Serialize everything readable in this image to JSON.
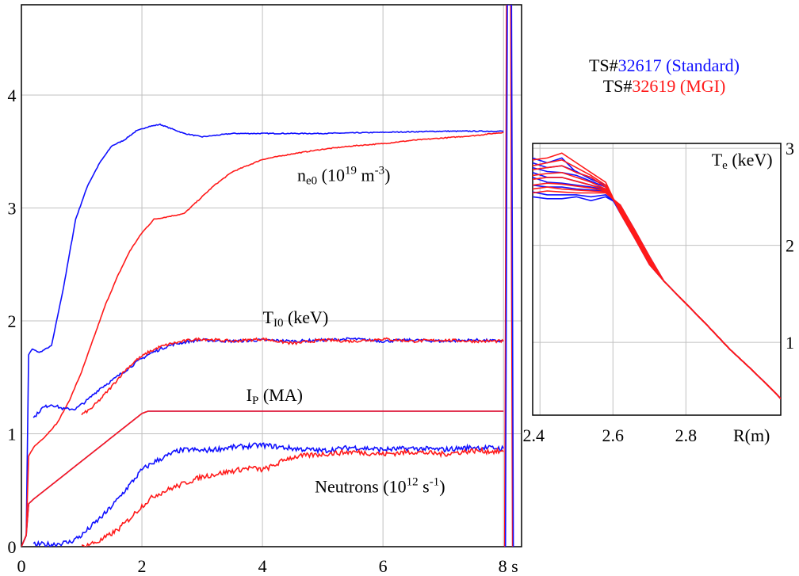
{
  "charts": [
    {
      "id": "main",
      "type": "line",
      "xlim": [
        0,
        8.3
      ],
      "ylim": [
        0,
        4.8
      ],
      "x_ticks": [
        "0",
        "2",
        "4",
        "6",
        "8 s"
      ],
      "x_tick_values": [
        0,
        2,
        4,
        6,
        8
      ],
      "y_ticks": [
        "0",
        "1",
        "2",
        "3",
        "4"
      ],
      "y_tick_values": [
        0,
        1,
        2,
        3,
        4
      ],
      "grid": true,
      "annotations": [
        {
          "id": "ne0",
          "parts": [
            "n",
            "e0",
            " (10",
            "19",
            " m",
            "-3",
            ")"
          ],
          "x": 5.35,
          "y": 3.24
        },
        {
          "id": "ti0",
          "parts": [
            "T",
            "I0",
            " (keV)"
          ],
          "x": 4.55,
          "y": 1.98
        },
        {
          "id": "ip",
          "parts": [
            "I",
            "P",
            " (MA)"
          ],
          "x": 4.2,
          "y": 1.29
        },
        {
          "id": "neutrons",
          "parts": [
            "Neutrons (10",
            "12",
            " s",
            "-1",
            ")"
          ],
          "x": 5.95,
          "y": 0.48
        }
      ],
      "series": [
        {
          "signal": "ne0",
          "shot": "32617",
          "color": "#1010ff",
          "x": [
            0,
            0.08,
            0.12,
            0.18,
            0.3,
            0.5,
            0.7,
            0.9,
            1.1,
            1.3,
            1.5,
            1.7,
            1.9,
            2.1,
            2.3,
            2.5,
            2.7,
            3.0,
            3.5,
            4.0,
            5.0,
            6.0,
            7.0,
            8.0
          ],
          "y": [
            0,
            0.1,
            1.7,
            1.75,
            1.72,
            1.78,
            2.3,
            2.9,
            3.2,
            3.4,
            3.55,
            3.6,
            3.68,
            3.72,
            3.74,
            3.7,
            3.66,
            3.63,
            3.66,
            3.66,
            3.66,
            3.67,
            3.68,
            3.68
          ]
        },
        {
          "signal": "ne0",
          "shot": "32619",
          "color": "#ff1a1a",
          "x": [
            0,
            0.08,
            0.12,
            0.2,
            0.4,
            0.6,
            0.8,
            1.0,
            1.2,
            1.4,
            1.6,
            1.8,
            2.0,
            2.2,
            2.5,
            2.7,
            2.9,
            3.2,
            3.5,
            4.0,
            4.5,
            5.0,
            5.5,
            6.0,
            6.5,
            7.0,
            7.5,
            8.0
          ],
          "y": [
            0,
            0.1,
            0.8,
            0.88,
            0.98,
            1.1,
            1.3,
            1.55,
            1.85,
            2.15,
            2.4,
            2.62,
            2.78,
            2.9,
            2.93,
            2.95,
            3.05,
            3.2,
            3.32,
            3.43,
            3.48,
            3.52,
            3.55,
            3.57,
            3.6,
            3.62,
            3.64,
            3.67
          ]
        },
        {
          "signal": "ti0",
          "shot": "32617",
          "color": "#1010ff",
          "x": [
            0.2,
            0.35,
            0.5,
            0.7,
            0.9,
            1.1,
            1.3,
            1.5,
            1.7,
            1.9,
            2.1,
            2.3,
            2.5,
            2.8,
            3.0,
            3.5,
            4.0,
            4.5,
            5.0,
            5.5,
            6.0,
            6.5,
            7.0,
            7.5,
            8.0
          ],
          "y": [
            1.14,
            1.23,
            1.26,
            1.22,
            1.22,
            1.3,
            1.4,
            1.47,
            1.55,
            1.63,
            1.7,
            1.75,
            1.79,
            1.82,
            1.83,
            1.82,
            1.83,
            1.82,
            1.83,
            1.84,
            1.82,
            1.83,
            1.82,
            1.83,
            1.82
          ]
        },
        {
          "signal": "ti0",
          "shot": "32619",
          "color": "#ff1a1a",
          "x": [
            1.0,
            1.15,
            1.3,
            1.5,
            1.7,
            1.9,
            2.1,
            2.3,
            2.5,
            2.8,
            3.0,
            3.5,
            4.0,
            4.5,
            5.0,
            5.5,
            6.0,
            6.5,
            7.0,
            7.5,
            8.0
          ],
          "y": [
            1.17,
            1.22,
            1.3,
            1.42,
            1.55,
            1.65,
            1.72,
            1.77,
            1.8,
            1.83,
            1.84,
            1.82,
            1.84,
            1.8,
            1.83,
            1.82,
            1.84,
            1.82,
            1.83,
            1.82,
            1.82
          ]
        },
        {
          "signal": "ip",
          "shot": "32617",
          "color": "#1010ff",
          "x": [
            0,
            0.08,
            0.12,
            0.2,
            2.0,
            2.1,
            8.0
          ],
          "y": [
            0,
            0.1,
            0.38,
            0.42,
            1.18,
            1.2,
            1.2
          ]
        },
        {
          "signal": "ip",
          "shot": "32619",
          "color": "#ff1a1a",
          "x": [
            0,
            0.08,
            0.12,
            0.2,
            2.0,
            2.1,
            8.0
          ],
          "y": [
            0,
            0.1,
            0.38,
            0.42,
            1.18,
            1.2,
            1.2
          ]
        },
        {
          "signal": "neutrons",
          "shot": "32617",
          "color": "#1010ff",
          "x": [
            0.2,
            0.5,
            0.8,
            1.0,
            1.2,
            1.4,
            1.6,
            1.8,
            2.0,
            2.2,
            2.4,
            2.6,
            2.8,
            3.0,
            3.5,
            4.0,
            4.5,
            5.0,
            5.5,
            6.0,
            6.5,
            7.0,
            7.5,
            8.0
          ],
          "y": [
            0.02,
            0.02,
            0.04,
            0.1,
            0.2,
            0.3,
            0.42,
            0.55,
            0.68,
            0.75,
            0.8,
            0.85,
            0.86,
            0.85,
            0.88,
            0.9,
            0.87,
            0.85,
            0.88,
            0.86,
            0.87,
            0.86,
            0.88,
            0.87
          ]
        },
        {
          "signal": "neutrons",
          "shot": "32619",
          "color": "#ff1a1a",
          "x": [
            1.0,
            1.3,
            1.6,
            1.8,
            2.0,
            2.2,
            2.5,
            2.8,
            3.0,
            3.5,
            3.8,
            4.0,
            4.2,
            4.4,
            4.6,
            5.0,
            5.5,
            6.0,
            6.5,
            7.0,
            7.5,
            8.0
          ],
          "y": [
            0.0,
            0.05,
            0.15,
            0.25,
            0.36,
            0.45,
            0.52,
            0.58,
            0.62,
            0.67,
            0.7,
            0.68,
            0.72,
            0.78,
            0.8,
            0.82,
            0.84,
            0.82,
            0.84,
            0.82,
            0.85,
            0.84
          ]
        }
      ],
      "spike": {
        "x": [
          8.02,
          8.05,
          8.08,
          8.12,
          8.15
        ],
        "y": [
          0,
          4.8,
          4.8,
          4.8,
          0
        ]
      }
    },
    {
      "id": "te_inset",
      "type": "line",
      "xlim": [
        2.38,
        3.06
      ],
      "ylim": [
        0.25,
        3.05
      ],
      "x_ticks": [
        "2.4",
        "2.6",
        "2.8",
        "R(m)"
      ],
      "x_tick_values": [
        2.4,
        2.6,
        2.8,
        2.98
      ],
      "y_ticks": [
        "1",
        "2",
        "3"
      ],
      "y_tick_values": [
        1,
        2,
        3
      ],
      "grid": true,
      "annotations": [
        {
          "id": "te",
          "parts": [
            "T",
            "e",
            " (keV)"
          ],
          "x": 2.98,
          "y": 2.82
        }
      ],
      "profile_x": [
        2.38,
        2.42,
        2.46,
        2.5,
        2.54,
        2.58,
        2.62,
        2.66,
        2.7,
        2.74,
        2.8,
        2.86,
        2.92,
        2.98,
        3.04,
        3.06
      ],
      "profile_tail": [
        2.38,
        2.12,
        1.85,
        1.63,
        1.4,
        1.17,
        0.93,
        0.72,
        0.5,
        0.42
      ],
      "series": [
        {
          "shot": "32617",
          "color": "#1010ff",
          "heads": [
            [
              2.9,
              2.85,
              2.9,
              2.75,
              2.7,
              2.6
            ],
            [
              2.85,
              2.8,
              2.82,
              2.76,
              2.68,
              2.62
            ],
            [
              2.8,
              2.76,
              2.75,
              2.72,
              2.66,
              2.6
            ],
            [
              2.75,
              2.7,
              2.7,
              2.66,
              2.62,
              2.58
            ],
            [
              2.7,
              2.65,
              2.64,
              2.62,
              2.6,
              2.57
            ],
            [
              2.62,
              2.6,
              2.6,
              2.58,
              2.57,
              2.56
            ],
            [
              2.55,
              2.52,
              2.52,
              2.52,
              2.5,
              2.52
            ],
            [
              2.5,
              2.48,
              2.48,
              2.5,
              2.46,
              2.5
            ]
          ]
        },
        {
          "shot": "32619",
          "color": "#ff1a1a",
          "heads": [
            [
              2.88,
              2.9,
              2.95,
              2.85,
              2.75,
              2.65
            ],
            [
              2.82,
              2.85,
              2.88,
              2.8,
              2.72,
              2.62
            ],
            [
              2.78,
              2.8,
              2.82,
              2.75,
              2.7,
              2.6
            ],
            [
              2.72,
              2.74,
              2.75,
              2.7,
              2.65,
              2.58
            ],
            [
              2.68,
              2.7,
              2.7,
              2.66,
              2.62,
              2.57
            ],
            [
              2.62,
              2.64,
              2.63,
              2.61,
              2.59,
              2.56
            ],
            [
              2.58,
              2.6,
              2.58,
              2.57,
              2.56,
              2.55
            ],
            [
              2.54,
              2.56,
              2.55,
              2.54,
              2.54,
              2.54
            ]
          ]
        }
      ]
    }
  ],
  "legend": [
    {
      "prefix": "TS#",
      "shot": "32617",
      "label": " (Standard)",
      "shot_color": "#1010ff"
    },
    {
      "prefix": "TS#",
      "shot": "32619",
      "label": " (MGI)",
      "shot_color": "#ff1a1a"
    }
  ]
}
